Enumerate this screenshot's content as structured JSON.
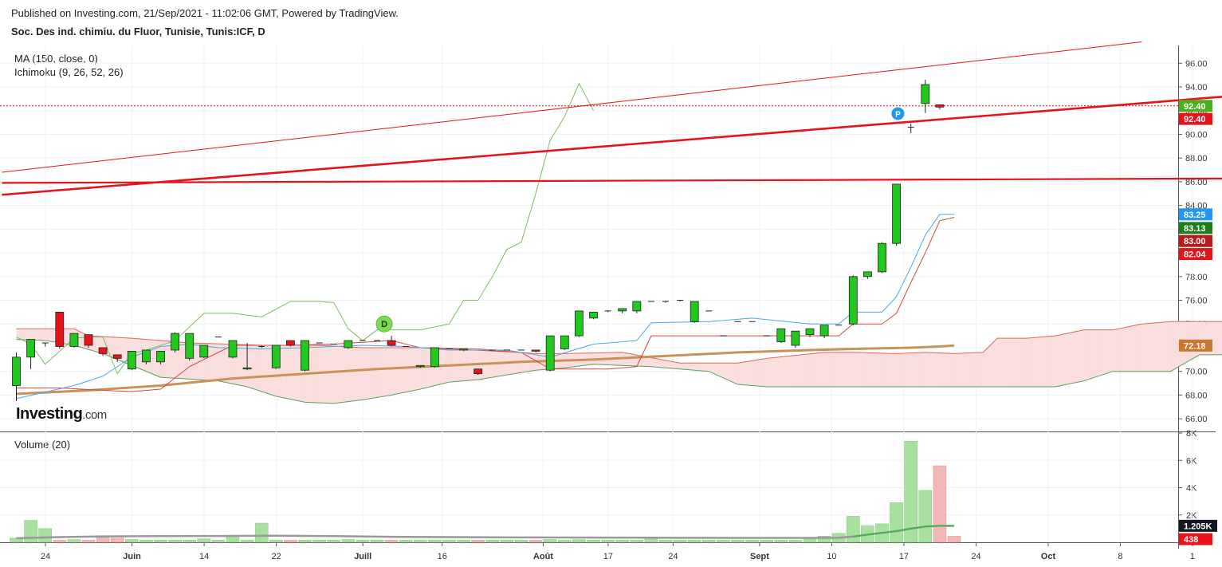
{
  "header": {
    "published": "Published on Investing.com, 21/Sep/2021 - 11:02:06 GMT, Powered by TradingView.",
    "symbol": "Soc. Des ind. chimiu. du Fluor, Tunisie, Tunis:ICF, D"
  },
  "indicators": {
    "ma": "MA (150, close, 0)",
    "ichimoku": "Ichimoku (9, 26, 52, 26)",
    "volume": "Volume (20)"
  },
  "logo": {
    "main": "Investing",
    "suffix": ".com"
  },
  "markers": {
    "dividend": "D",
    "pivot": "P"
  },
  "colors": {
    "up": "#22c81e",
    "down": "#e8121b",
    "ma": "#c8925a",
    "tenkan": "#4aa8e8",
    "kijun": "#d9453e",
    "chikou": "#7bbf5e",
    "cloud_bull": "#e6f2e6",
    "cloud_bear": "#fadede",
    "trendline": "#e8121b",
    "volume_up": "#a8e0a0",
    "volume_down": "#f2b8b8"
  },
  "chart_data": {
    "type": "candlestick",
    "title": "Soc. Des ind. chimiu. du Fluor, Tunisie, Tunis:ICF, D",
    "x_tick_labels": [
      "24",
      "Juin",
      "14",
      "22",
      "Juill",
      "16",
      "Août",
      "17",
      "24",
      "Sept",
      "10",
      "17",
      "24",
      "Oct",
      "8",
      "1"
    ],
    "y_tick_labels": [
      "66.00",
      "68.00",
      "70.00",
      "72.00",
      "74.00",
      "76.00",
      "78.00",
      "80.00",
      "82.00",
      "84.00",
      "86.00",
      "88.00",
      "90.00",
      "92.00",
      "94.00",
      "96.00"
    ],
    "ylim": [
      65,
      97.5
    ],
    "price_badges": [
      {
        "label": "92.40",
        "value": 92.4,
        "color": "#4caf1e"
      },
      {
        "label": "92.40",
        "value": 91.3,
        "color": "#e8121b"
      },
      {
        "label": "83.25",
        "value": 83.25,
        "color": "#2196f3"
      },
      {
        "label": "83.13",
        "value": 82.1,
        "color": "#1e7d1e"
      },
      {
        "label": "83.00",
        "value": 81.0,
        "color": "#b71c1c"
      },
      {
        "label": "82.04",
        "value": 79.9,
        "color": "#e8121b"
      },
      {
        "label": "72.18",
        "value": 72.18,
        "color": "#c8772e"
      }
    ],
    "candles": [
      [
        68.8,
        71.2,
        67.5,
        71.6
      ],
      [
        71.2,
        72.7,
        70.2,
        72.7
      ],
      [
        72.4,
        72.4,
        72.1,
        72.4
      ],
      [
        75.0,
        72.1,
        71.9,
        75.0
      ],
      [
        72.1,
        73.2,
        72.0,
        73.2
      ],
      [
        73.1,
        72.2,
        72.0,
        73.1
      ],
      [
        72.0,
        71.5,
        71.3,
        72.0
      ],
      [
        71.4,
        71.1,
        70.8,
        71.4
      ],
      [
        70.2,
        71.7,
        70.1,
        71.7
      ],
      [
        70.8,
        71.8,
        70.6,
        71.8
      ],
      [
        70.8,
        71.7,
        70.6,
        71.7
      ],
      [
        71.8,
        73.2,
        71.6,
        73.3
      ],
      [
        71.1,
        73.2,
        70.9,
        73.2
      ],
      [
        71.2,
        72.2,
        71.1,
        72.2
      ],
      [
        72.9,
        72.9,
        72.9,
        72.9
      ],
      [
        71.2,
        72.6,
        71.1,
        72.6
      ],
      [
        70.2,
        70.3,
        70.1,
        72.4
      ],
      [
        72.1,
        72.1,
        72.0,
        72.2
      ],
      [
        70.3,
        72.2,
        70.2,
        72.2
      ],
      [
        72.6,
        72.2,
        72.1,
        72.6
      ],
      [
        70.1,
        72.6,
        70.0,
        72.6
      ],
      [
        72.4,
        72.4,
        72.4,
        72.4
      ],
      [
        72.3,
        72.3,
        72.3,
        72.3
      ],
      [
        72.0,
        72.6,
        71.9,
        72.6
      ],
      [
        72.6,
        72.6,
        72.6,
        72.6
      ],
      [
        72.6,
        72.6,
        72.6,
        72.6
      ],
      [
        72.6,
        72.2,
        72.1,
        73.0
      ],
      [
        72.1,
        72.1,
        72.1,
        72.1
      ],
      [
        70.4,
        70.5,
        70.3,
        70.5
      ],
      [
        70.4,
        72.0,
        70.3,
        72.0
      ],
      [
        71.9,
        71.9,
        71.9,
        71.9
      ],
      [
        71.8,
        71.9,
        71.7,
        71.9
      ],
      [
        70.2,
        69.8,
        69.7,
        70.2
      ],
      [
        71.8,
        71.8,
        71.8,
        71.8
      ],
      [
        71.8,
        71.8,
        71.8,
        71.8
      ],
      [
        71.8,
        71.8,
        71.8,
        71.8
      ],
      [
        71.8,
        71.7,
        71.6,
        71.8
      ],
      [
        70.1,
        73.0,
        70.0,
        73.0
      ],
      [
        71.9,
        73.0,
        71.8,
        73.0
      ],
      [
        73.0,
        75.1,
        72.9,
        75.1
      ],
      [
        74.5,
        75.0,
        74.4,
        75.0
      ],
      [
        75.1,
        75.1,
        75.0,
        75.1
      ],
      [
        75.1,
        75.3,
        74.9,
        75.3
      ],
      [
        75.1,
        75.9,
        74.9,
        75.9
      ],
      [
        75.9,
        75.9,
        75.9,
        75.9
      ],
      [
        75.9,
        75.9,
        75.8,
        75.9
      ],
      [
        76.0,
        76.0,
        75.9,
        76.0
      ],
      [
        74.2,
        75.9,
        74.1,
        75.9
      ],
      [
        75.1,
        75.1,
        75.1,
        75.1
      ],
      [
        73.0,
        73.0,
        73.0,
        73.0
      ],
      [
        74.2,
        74.2,
        74.2,
        74.2
      ],
      [
        74.2,
        74.2,
        74.2,
        74.2
      ],
      [
        73.0,
        73.0,
        73.0,
        73.0
      ],
      [
        72.5,
        73.6,
        72.4,
        73.6
      ],
      [
        72.2,
        73.4,
        72.0,
        73.4
      ],
      [
        73.1,
        73.6,
        72.9,
        73.6
      ],
      [
        73.0,
        73.9,
        72.8,
        73.9
      ],
      [
        73.9,
        73.9,
        73.9,
        73.9
      ],
      [
        74.0,
        78.0,
        73.9,
        78.1
      ],
      [
        78.0,
        78.4,
        77.8,
        78.4
      ],
      [
        78.4,
        80.8,
        78.3,
        80.9
      ],
      [
        80.8,
        85.8,
        80.6,
        85.8
      ],
      [
        90.6,
        90.6,
        90.1,
        90.9
      ],
      [
        92.6,
        94.2,
        91.8,
        94.6
      ],
      [
        92.5,
        92.3,
        92.1,
        92.5
      ]
    ],
    "tenkan_sen": [
      [
        0,
        67.7
      ],
      [
        4,
        68.8
      ],
      [
        6,
        69.6
      ],
      [
        8,
        71.2
      ],
      [
        10,
        72.1
      ],
      [
        12,
        72.3
      ],
      [
        14,
        72.0
      ],
      [
        17,
        71.9
      ],
      [
        20,
        72.0
      ],
      [
        24,
        72.2
      ],
      [
        27,
        72.1
      ],
      [
        30,
        71.8
      ],
      [
        34,
        71.8
      ],
      [
        37,
        71.2
      ],
      [
        40,
        72.3
      ],
      [
        43,
        72.6
      ],
      [
        44,
        74.1
      ],
      [
        48,
        74.2
      ],
      [
        51,
        74.5
      ],
      [
        55,
        74.0
      ],
      [
        57,
        74.0
      ],
      [
        58,
        75.0
      ],
      [
        60,
        75.0
      ],
      [
        61,
        76.3
      ],
      [
        62,
        78.8
      ],
      [
        63,
        81.5
      ],
      [
        64,
        83.25
      ],
      [
        65,
        83.25
      ]
    ],
    "kijun_sen": [
      [
        0,
        68.6
      ],
      [
        3,
        68.6
      ],
      [
        6,
        68.4
      ],
      [
        8,
        68.3
      ],
      [
        10,
        68.5
      ],
      [
        12,
        70.4
      ],
      [
        15,
        72.2
      ],
      [
        19,
        72.2
      ],
      [
        22,
        72.3
      ],
      [
        26,
        72.6
      ],
      [
        28,
        72.0
      ],
      [
        30,
        71.9
      ],
      [
        35,
        71.6
      ],
      [
        37,
        70.2
      ],
      [
        41,
        70.2
      ],
      [
        43,
        70.4
      ],
      [
        44,
        73.0
      ],
      [
        50,
        73.0
      ],
      [
        55,
        73.0
      ],
      [
        57,
        73.0
      ],
      [
        58,
        74.0
      ],
      [
        60,
        74.0
      ],
      [
        61,
        74.9
      ],
      [
        62,
        77.5
      ],
      [
        63,
        80.0
      ],
      [
        64,
        82.7
      ],
      [
        65,
        83.0
      ]
    ],
    "chikou_span": [
      [
        0,
        72.9
      ],
      [
        1,
        72.3
      ],
      [
        2,
        70.6
      ],
      [
        4,
        72.8
      ],
      [
        5,
        72.9
      ],
      [
        6,
        72.9
      ],
      [
        7,
        69.8
      ],
      [
        8,
        71.5
      ],
      [
        9,
        71.8
      ],
      [
        11,
        72.6
      ],
      [
        13,
        74.9
      ],
      [
        15,
        74.9
      ],
      [
        17,
        74.6
      ],
      [
        19,
        75.9
      ],
      [
        21,
        75.9
      ],
      [
        22,
        75.8
      ],
      [
        23,
        73.6
      ],
      [
        24,
        72.6
      ],
      [
        25,
        73.5
      ],
      [
        26,
        73.5
      ],
      [
        28,
        73.5
      ],
      [
        30,
        74.0
      ],
      [
        31,
        76.0
      ],
      [
        32,
        76.0
      ],
      [
        33,
        78.0
      ],
      [
        34,
        80.3
      ],
      [
        35,
        80.9
      ],
      [
        36,
        85.0
      ],
      [
        37,
        89.5
      ],
      [
        38,
        91.5
      ],
      [
        39,
        94.3
      ],
      [
        40,
        92.0
      ]
    ],
    "senkou_a": [
      [
        0,
        73.6
      ],
      [
        4,
        73.6
      ],
      [
        5,
        73.0
      ],
      [
        8,
        72.8
      ],
      [
        12,
        72.4
      ],
      [
        17,
        72.2
      ],
      [
        21,
        72.2
      ],
      [
        24,
        72.0
      ],
      [
        28,
        72.0
      ],
      [
        32,
        71.9
      ],
      [
        36,
        71.5
      ],
      [
        38,
        71.5
      ],
      [
        42,
        71.6
      ],
      [
        46,
        70.7
      ],
      [
        50,
        70.7
      ],
      [
        52,
        71.1
      ],
      [
        56,
        71.6
      ],
      [
        58,
        71.6
      ],
      [
        61,
        71.5
      ],
      [
        63,
        71.6
      ],
      [
        65,
        71.5
      ],
      [
        67,
        71.6
      ],
      [
        68,
        72.8
      ],
      [
        70,
        72.8
      ],
      [
        72,
        73.0
      ],
      [
        74,
        73.5
      ],
      [
        76,
        73.5
      ],
      [
        78,
        74.0
      ],
      [
        80,
        74.2
      ],
      [
        84,
        74.2
      ],
      [
        86,
        74.2
      ],
      [
        88,
        74.0
      ],
      [
        90,
        73.8
      ]
    ],
    "senkou_b": [
      [
        0,
        72.7
      ],
      [
        2,
        72.6
      ],
      [
        4,
        72.2
      ],
      [
        6,
        71.5
      ],
      [
        8,
        70.5
      ],
      [
        10,
        69.5
      ],
      [
        14,
        69.2
      ],
      [
        16,
        68.7
      ],
      [
        18,
        67.9
      ],
      [
        20,
        67.4
      ],
      [
        22,
        67.3
      ],
      [
        24,
        67.6
      ],
      [
        26,
        68.0
      ],
      [
        28,
        68.5
      ],
      [
        30,
        69.1
      ],
      [
        32,
        69.3
      ],
      [
        34,
        69.7
      ],
      [
        36,
        70.1
      ],
      [
        38,
        70.3
      ],
      [
        40,
        70.6
      ],
      [
        42,
        70.5
      ],
      [
        44,
        70.4
      ],
      [
        46,
        70.2
      ],
      [
        48,
        70.0
      ],
      [
        50,
        68.9
      ],
      [
        52,
        68.7
      ],
      [
        56,
        68.7
      ],
      [
        60,
        68.7
      ],
      [
        64,
        68.7
      ],
      [
        68,
        68.7
      ],
      [
        72,
        68.7
      ],
      [
        74,
        69.2
      ],
      [
        76,
        70.0
      ],
      [
        80,
        70.0
      ],
      [
        82,
        71.4
      ],
      [
        84,
        71.4
      ],
      [
        86,
        72.8
      ],
      [
        90,
        72.8
      ]
    ],
    "ma_150": [
      [
        0,
        68.1
      ],
      [
        5,
        68.4
      ],
      [
        10,
        68.8
      ],
      [
        15,
        69.4
      ],
      [
        20,
        69.8
      ],
      [
        25,
        70.2
      ],
      [
        30,
        70.5
      ],
      [
        35,
        70.8
      ],
      [
        40,
        71.0
      ],
      [
        45,
        71.3
      ],
      [
        50,
        71.6
      ],
      [
        55,
        71.8
      ],
      [
        58,
        71.9
      ],
      [
        60,
        71.95
      ],
      [
        62,
        72.0
      ],
      [
        64,
        72.1
      ],
      [
        65,
        72.18
      ]
    ],
    "trendlines": [
      {
        "from": [
          -1,
          85.9
        ],
        "to": [
          90,
          86.3
        ],
        "width": 2.2
      },
      {
        "from": [
          -1,
          84.9
        ],
        "to": [
          90,
          93.8
        ],
        "width": 2.6
      },
      {
        "from": [
          -1,
          86.8
        ],
        "to": [
          78,
          97.8
        ],
        "width": 1
      }
    ],
    "last_price_line": 92.4,
    "volume": {
      "title": "Volume (20)",
      "y_tick_labels": [
        "2K",
        "4K",
        "6K",
        "8K"
      ],
      "ylim": [
        0,
        8000
      ],
      "values": [
        300,
        1600,
        1000,
        150,
        200,
        150,
        350,
        300,
        200,
        150,
        150,
        150,
        150,
        250,
        150,
        500,
        150,
        1400,
        150,
        150,
        150,
        150,
        150,
        200,
        150,
        150,
        150,
        150,
        150,
        150,
        150,
        150,
        150,
        150,
        150,
        150,
        150,
        200,
        150,
        200,
        150,
        150,
        150,
        150,
        300,
        150,
        150,
        150,
        150,
        150,
        150,
        150,
        150,
        150,
        150,
        300,
        450,
        650,
        1900,
        1200,
        1350,
        2900,
        7400,
        3800,
        5600
      ],
      "last_volume_down": 438,
      "ma": [
        [
          0,
          300
        ],
        [
          3,
          380
        ],
        [
          6,
          430
        ],
        [
          10,
          450
        ],
        [
          14,
          460
        ],
        [
          18,
          480
        ],
        [
          22,
          450
        ],
        [
          26,
          400
        ],
        [
          30,
          380
        ],
        [
          34,
          360
        ],
        [
          38,
          350
        ],
        [
          42,
          340
        ],
        [
          46,
          330
        ],
        [
          50,
          320
        ],
        [
          54,
          320
        ],
        [
          57,
          330
        ],
        [
          58,
          420
        ],
        [
          59,
          560
        ],
        [
          60,
          690
        ],
        [
          61,
          820
        ],
        [
          62,
          1000
        ],
        [
          63,
          1150
        ],
        [
          64,
          1205
        ],
        [
          65,
          1205
        ]
      ],
      "badges": [
        {
          "label": "1.205K",
          "value": 1205,
          "color": "#131722"
        },
        {
          "label": "438",
          "value": 230,
          "color": "#e8121b"
        }
      ]
    }
  }
}
